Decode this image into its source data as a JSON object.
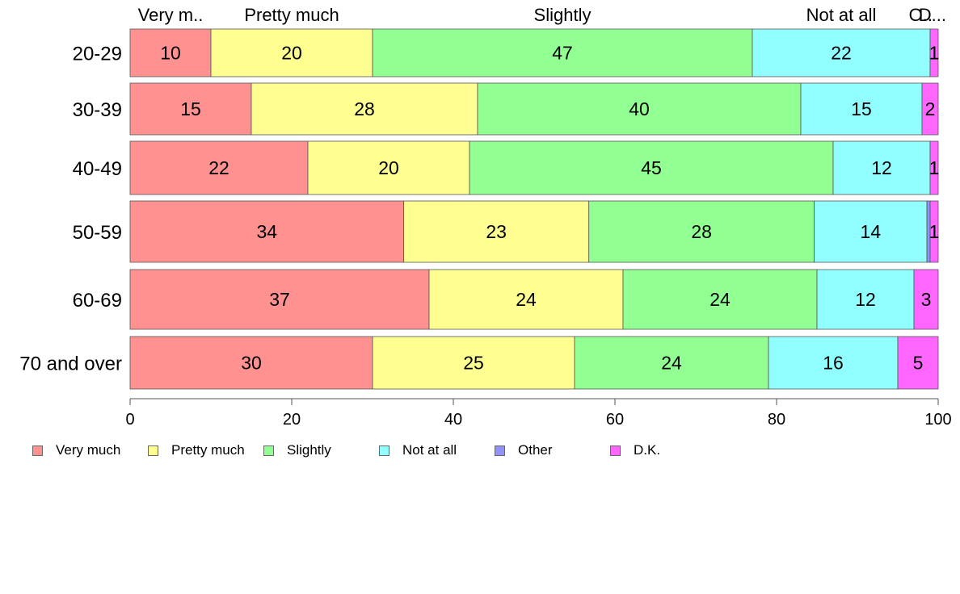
{
  "chart_data": {
    "type": "bar",
    "orientation": "horizontal",
    "stacked": true,
    "categories": [
      "20-29",
      "30-39",
      "40-49",
      "50-59",
      "60-69",
      "70 and over"
    ],
    "series": [
      {
        "name": "Very much",
        "color": "#ff9191",
        "values": [
          10,
          15,
          22,
          34,
          37,
          30
        ]
      },
      {
        "name": "Pretty much",
        "color": "#ffff91",
        "values": [
          20,
          28,
          20,
          23,
          24,
          25
        ]
      },
      {
        "name": "Slightly",
        "color": "#91ff91",
        "values": [
          47,
          40,
          45,
          28,
          24,
          24
        ]
      },
      {
        "name": "Not at all",
        "color": "#91ffff",
        "values": [
          22,
          15,
          12,
          14,
          12,
          16
        ]
      },
      {
        "name": "Other",
        "color": "#9191ff",
        "values": [
          0,
          0,
          0,
          0.4,
          0,
          0
        ]
      },
      {
        "name": "D.K.",
        "color": "#ff66ff",
        "values": [
          1,
          2,
          1,
          1,
          3,
          5
        ]
      }
    ],
    "data_labels": [
      [
        "10",
        "20",
        "47",
        "22",
        "",
        "1"
      ],
      [
        "15",
        "28",
        "40",
        "15",
        "",
        "2"
      ],
      [
        "22",
        "20",
        "45",
        "12",
        "",
        "1"
      ],
      [
        "34",
        "23",
        "28",
        "14",
        "",
        "1"
      ],
      [
        "37",
        "24",
        "24",
        "12",
        "",
        "3"
      ],
      [
        "30",
        "25",
        "24",
        "16",
        "",
        "5"
      ]
    ],
    "top_labels": [
      "Very m..",
      "Pretty much",
      "Slightly",
      "Not at all",
      "O..",
      "D..."
    ],
    "xlim": [
      0,
      100
    ],
    "xticks": [
      "0",
      "20",
      "40",
      "60",
      "80",
      "100"
    ],
    "legend_position": "bottom-left",
    "grid": false
  }
}
